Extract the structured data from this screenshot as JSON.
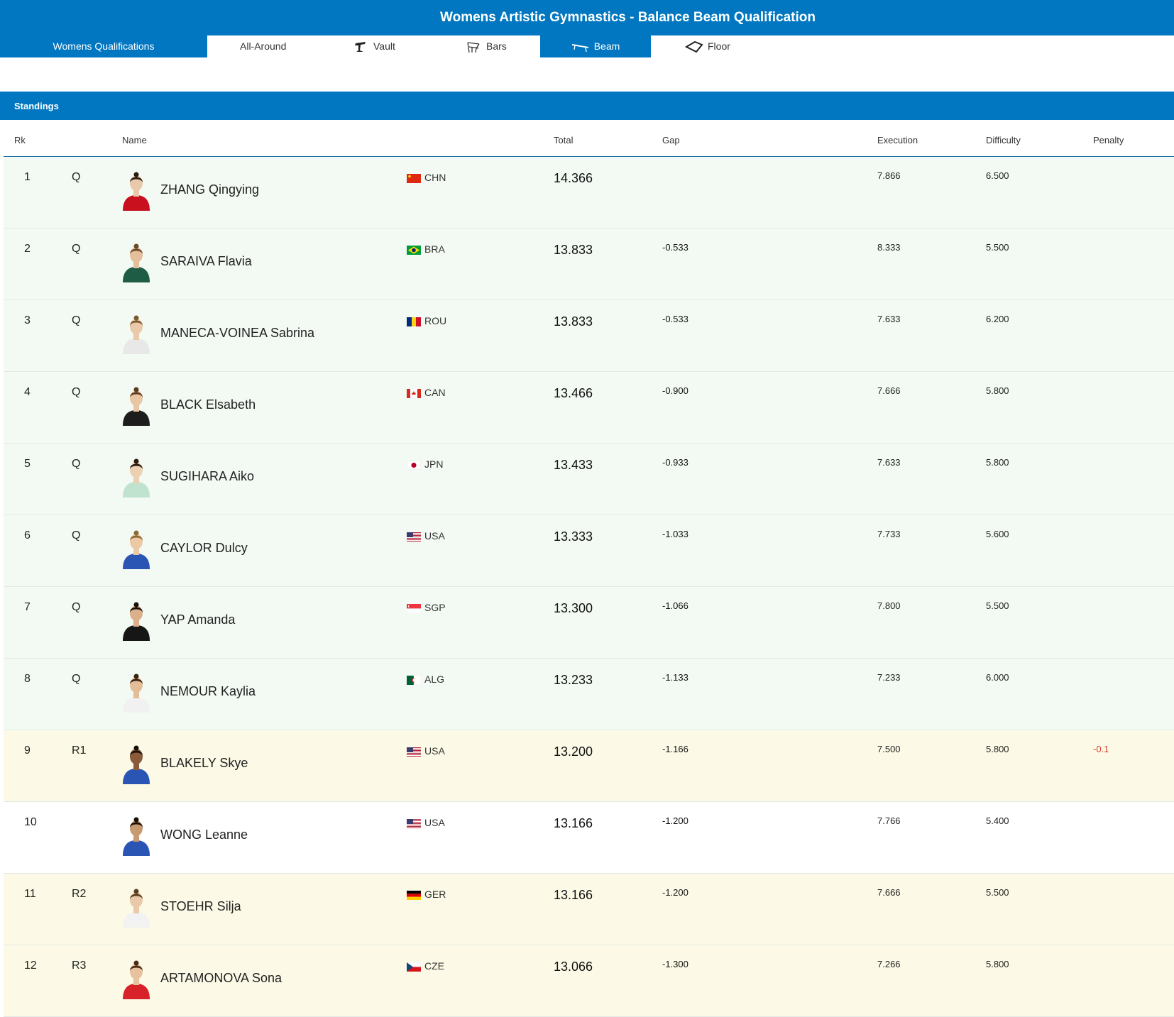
{
  "header": {
    "title": "Womens Artistic Gymnastics - Balance Beam Qualification"
  },
  "tabs": [
    {
      "label": "Womens Qualifications",
      "icon": ""
    },
    {
      "label": "All-Around",
      "icon": ""
    },
    {
      "label": "Vault",
      "icon": "vault-icon"
    },
    {
      "label": "Bars",
      "icon": "bars-icon"
    },
    {
      "label": "Beam",
      "icon": "beam-icon"
    },
    {
      "label": "Floor",
      "icon": "floor-icon"
    }
  ],
  "section": {
    "title": "Standings"
  },
  "columns": {
    "rk": "Rk",
    "name": "Name",
    "total": "Total",
    "gap": "Gap",
    "execution": "Execution",
    "difficulty": "Difficulty",
    "penalty": "Penalty"
  },
  "colors": {
    "accent": "#0177c1",
    "qualified_row": "#f3faf3",
    "reserve_row": "#fcfae6",
    "penalty": "#d43a2a"
  },
  "rows": [
    {
      "rank": "1",
      "qual": "Q",
      "name": "ZHANG Qingying",
      "noc": "CHN",
      "total": "14.366",
      "gap": "",
      "execution": "7.866",
      "difficulty": "6.500",
      "penalty": ""
    },
    {
      "rank": "2",
      "qual": "Q",
      "name": "SARAIVA Flavia",
      "noc": "BRA",
      "total": "13.833",
      "gap": "-0.533",
      "execution": "8.333",
      "difficulty": "5.500",
      "penalty": ""
    },
    {
      "rank": "3",
      "qual": "Q",
      "name": "MANECA-VOINEA Sabrina",
      "noc": "ROU",
      "total": "13.833",
      "gap": "-0.533",
      "execution": "7.633",
      "difficulty": "6.200",
      "penalty": ""
    },
    {
      "rank": "4",
      "qual": "Q",
      "name": "BLACK Elsabeth",
      "noc": "CAN",
      "total": "13.466",
      "gap": "-0.900",
      "execution": "7.666",
      "difficulty": "5.800",
      "penalty": ""
    },
    {
      "rank": "5",
      "qual": "Q",
      "name": "SUGIHARA Aiko",
      "noc": "JPN",
      "total": "13.433",
      "gap": "-0.933",
      "execution": "7.633",
      "difficulty": "5.800",
      "penalty": ""
    },
    {
      "rank": "6",
      "qual": "Q",
      "name": "CAYLOR Dulcy",
      "noc": "USA",
      "total": "13.333",
      "gap": "-1.033",
      "execution": "7.733",
      "difficulty": "5.600",
      "penalty": ""
    },
    {
      "rank": "7",
      "qual": "Q",
      "name": "YAP Amanda",
      "noc": "SGP",
      "total": "13.300",
      "gap": "-1.066",
      "execution": "7.800",
      "difficulty": "5.500",
      "penalty": ""
    },
    {
      "rank": "8",
      "qual": "Q",
      "name": "NEMOUR Kaylia",
      "noc": "ALG",
      "total": "13.233",
      "gap": "-1.133",
      "execution": "7.233",
      "difficulty": "6.000",
      "penalty": ""
    },
    {
      "rank": "9",
      "qual": "R1",
      "name": "BLAKELY Skye",
      "noc": "USA",
      "total": "13.200",
      "gap": "-1.166",
      "execution": "7.500",
      "difficulty": "5.800",
      "penalty": "-0.1"
    },
    {
      "rank": "10",
      "qual": "",
      "name": "WONG Leanne",
      "noc": "USA",
      "total": "13.166",
      "gap": "-1.200",
      "execution": "7.766",
      "difficulty": "5.400",
      "penalty": ""
    },
    {
      "rank": "11",
      "qual": "R2",
      "name": "STOEHR Silja",
      "noc": "GER",
      "total": "13.166",
      "gap": "-1.200",
      "execution": "7.666",
      "difficulty": "5.500",
      "penalty": ""
    },
    {
      "rank": "12",
      "qual": "R3",
      "name": "ARTAMONOVA Sona",
      "noc": "CZE",
      "total": "13.066",
      "gap": "-1.300",
      "execution": "7.266",
      "difficulty": "5.800",
      "penalty": ""
    }
  ]
}
